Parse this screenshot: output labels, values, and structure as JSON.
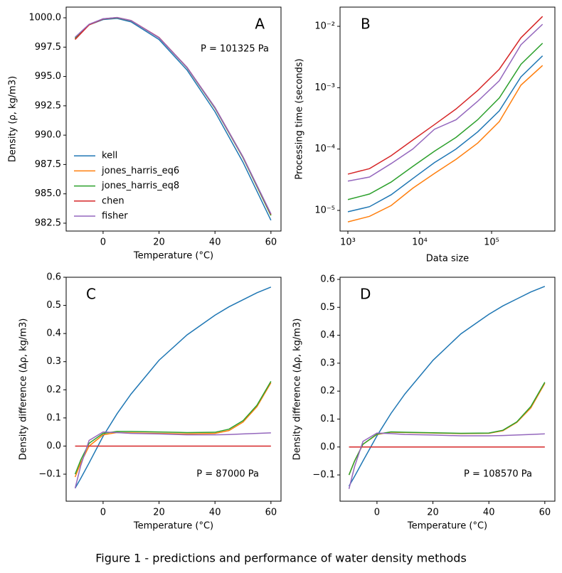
{
  "caption": "Figure 1 - predictions and performance of water density methods",
  "chart_data": [
    {
      "type": "line",
      "panel_label": "A",
      "annotation": "P = 101325 Pa",
      "xlabel": "Temperature (°C)",
      "ylabel": "Density (ρ, kg/m3)",
      "x": [
        -10,
        -5,
        0,
        5,
        10,
        20,
        30,
        40,
        50,
        60
      ],
      "xlim": [
        -13.2,
        63.6
      ],
      "xticks": [
        0,
        20,
        40,
        60
      ],
      "ylim": [
        981.83,
        1000.91
      ],
      "yticks": [
        982.5,
        {
          "value": 985,
          "label": "985.0"
        },
        987.5,
        {
          "value": 990,
          "label": "990.0"
        },
        992.5,
        {
          "value": 995,
          "label": "995.0"
        },
        997.5,
        {
          "value": 1000,
          "label": "1000.0"
        }
      ],
      "legend": "lower left",
      "series": [
        {
          "name": "kell",
          "color": "#1f77b4",
          "values": [
            998.3,
            999.4,
            999.85,
            999.95,
            999.65,
            998.15,
            995.55,
            992.0,
            987.7,
            982.75
          ]
        },
        {
          "name": "jones_harris_eq6",
          "color": "#ff7f0e",
          "values": [
            998.2,
            999.4,
            999.9,
            1000.0,
            999.75,
            998.3,
            995.75,
            992.3,
            988.1,
            983.2
          ]
        },
        {
          "name": "jones_harris_eq8",
          "color": "#2ca02c",
          "values": [
            998.25,
            999.42,
            999.9,
            1000.0,
            999.75,
            998.3,
            995.75,
            992.3,
            988.1,
            983.15
          ]
        },
        {
          "name": "chen",
          "color": "#d62728",
          "values": [
            998.15,
            999.4,
            999.9,
            1000.02,
            999.77,
            998.32,
            995.78,
            992.35,
            988.15,
            983.25
          ]
        },
        {
          "name": "fisher",
          "color": "#9467bd",
          "values": [
            998.35,
            999.45,
            999.92,
            1000.02,
            999.76,
            998.3,
            995.77,
            992.35,
            988.15,
            983.3
          ]
        }
      ]
    },
    {
      "type": "line",
      "panel_label": "B",
      "xlabel": "Data size",
      "ylabel": "Processing time (seconds)",
      "log_x": true,
      "log_y": true,
      "x": [
        1000,
        2000,
        4000,
        8000,
        16000,
        32000,
        64000,
        128000,
        256000,
        512000
      ],
      "xlim": [
        778,
        760000
      ],
      "xticks": [
        {
          "value": 1000,
          "label": "10³"
        },
        {
          "value": 10000,
          "label": "10⁴"
        },
        {
          "value": 100000,
          "label": "10⁵"
        }
      ],
      "ylim": [
        4.61e-06,
        0.02056
      ],
      "yticks": [
        {
          "value": 1e-05,
          "label": "10⁻⁵"
        },
        {
          "value": 0.0001,
          "label": "10⁻⁴"
        },
        {
          "value": 0.001,
          "label": "10⁻³"
        },
        {
          "value": 0.01,
          "label": "10⁻²"
        }
      ],
      "series": [
        {
          "color": "#1f77b4",
          "values": [
            9.5e-06,
            1.15e-05,
            1.8e-05,
            3.3e-05,
            6e-05,
            0.0001,
            0.00019,
            0.00042,
            0.0015,
            0.0033
          ]
        },
        {
          "color": "#ff7f0e",
          "values": [
            6.5e-06,
            8e-06,
            1.2e-05,
            2.3e-05,
            4e-05,
            6.8e-05,
            0.000125,
            0.00028,
            0.0011,
            0.0023
          ]
        },
        {
          "color": "#2ca02c",
          "values": [
            1.5e-05,
            1.85e-05,
            2.9e-05,
            5.2e-05,
            9.2e-05,
            0.000155,
            0.0003,
            0.00068,
            0.0024,
            0.0053
          ]
        },
        {
          "color": "#d62728",
          "values": [
            3.9e-05,
            4.8e-05,
            7.8e-05,
            0.00014,
            0.00025,
            0.00045,
            0.0009,
            0.002,
            0.0065,
            0.0145
          ]
        },
        {
          "color": "#9467bd",
          "values": [
            3e-05,
            3.5e-05,
            5.8e-05,
            0.0001,
            0.00021,
            0.0003,
            0.0006,
            0.0013,
            0.005,
            0.0108
          ]
        }
      ]
    },
    {
      "type": "line",
      "panel_label": "C",
      "annotation": "P = 87000 Pa",
      "xlabel": "Temperature (°C)",
      "ylabel": "Density difference  (Δρ, kg/m3)",
      "x": [
        -10,
        -8,
        -5,
        0,
        5,
        10,
        20,
        30,
        40,
        45,
        50,
        55,
        60
      ],
      "xlim": [
        -13.2,
        63.6
      ],
      "xticks": [
        0,
        20,
        40,
        60
      ],
      "ylim": [
        -0.196,
        0.6
      ],
      "yticks": [
        {
          "value": -0.1,
          "label": "−0.1"
        },
        {
          "value": 0,
          "label": "0.0"
        },
        0.1,
        0.2,
        0.3,
        0.4,
        0.5,
        0.6
      ],
      "series": [
        {
          "color": "#1f77b4",
          "values": [
            -0.15,
            -0.115,
            -0.06,
            0.035,
            0.115,
            0.185,
            0.305,
            0.395,
            0.465,
            0.495,
            0.52,
            0.545,
            0.565
          ]
        },
        {
          "color": "#ff7f0e",
          "values": [
            -0.11,
            -0.06,
            0.0,
            0.04,
            0.048,
            0.047,
            0.045,
            0.043,
            0.045,
            0.055,
            0.085,
            0.14,
            0.225
          ]
        },
        {
          "color": "#2ca02c",
          "values": [
            -0.1,
            -0.05,
            0.01,
            0.045,
            0.052,
            0.052,
            0.05,
            0.048,
            0.049,
            0.06,
            0.09,
            0.145,
            0.23
          ]
        },
        {
          "color": "#d62728",
          "values": [
            0,
            0,
            0,
            0,
            0,
            0,
            0,
            0,
            0,
            0,
            0,
            0,
            0
          ]
        },
        {
          "color": "#9467bd",
          "values": [
            -0.15,
            -0.07,
            0.02,
            0.05,
            0.048,
            0.045,
            0.043,
            0.04,
            0.04,
            0.041,
            0.043,
            0.045,
            0.047
          ]
        }
      ]
    },
    {
      "type": "line",
      "panel_label": "D",
      "annotation": "P = 108570 Pa",
      "xlabel": "Temperature (°C)",
      "ylabel": "Density difference  (Δρ, kg/m3)",
      "x": [
        -10,
        -8,
        -5,
        0,
        5,
        10,
        20,
        30,
        40,
        45,
        50,
        55,
        60
      ],
      "xlim": [
        -13.2,
        63.6
      ],
      "xticks": [
        0,
        20,
        40,
        60
      ],
      "ylim": [
        -0.194,
        0.6076
      ],
      "yticks": [
        {
          "value": -0.1,
          "label": "−0.1"
        },
        {
          "value": 0,
          "label": "0.0"
        },
        0.1,
        0.2,
        0.3,
        0.4,
        0.5,
        0.6
      ],
      "series": [
        {
          "color": "#1f77b4",
          "values": [
            -0.14,
            -0.105,
            -0.05,
            0.04,
            0.12,
            0.19,
            0.31,
            0.405,
            0.475,
            0.505,
            0.53,
            0.555,
            0.575
          ]
        },
        {
          "color": "#ff7f0e",
          "values": [
            -0.1,
            -0.05,
            0.01,
            0.045,
            0.053,
            0.052,
            0.05,
            0.048,
            0.049,
            0.058,
            0.088,
            0.14,
            0.228
          ]
        },
        {
          "color": "#2ca02c",
          "values": [
            -0.1,
            -0.05,
            0.01,
            0.046,
            0.054,
            0.053,
            0.051,
            0.049,
            0.05,
            0.06,
            0.09,
            0.145,
            0.232
          ]
        },
        {
          "color": "#d62728",
          "values": [
            0,
            0,
            0,
            0,
            0,
            0,
            0,
            0,
            0,
            0,
            0,
            0,
            0
          ]
        },
        {
          "color": "#9467bd",
          "values": [
            -0.15,
            -0.07,
            0.02,
            0.05,
            0.048,
            0.045,
            0.043,
            0.04,
            0.04,
            0.041,
            0.043,
            0.045,
            0.047
          ]
        }
      ]
    }
  ]
}
